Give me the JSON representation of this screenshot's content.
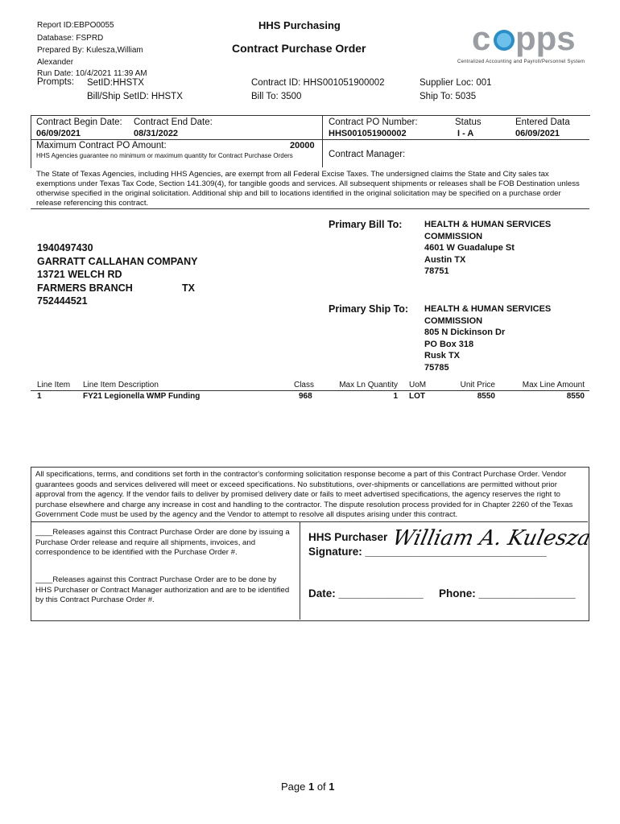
{
  "header": {
    "report_id": "Report ID:EBPO0055",
    "database": "Database: FSPRD",
    "prepared_by": "Prepared By: Kulesza,William",
    "prepared_by_2": "Alexander",
    "run_date": "Run Date: 10/4/2021 11:39 AM",
    "org": "HHS Purchasing",
    "title": "Contract Purchase Order",
    "logo_text": "capps",
    "logo_tagline": "Centralized Accounting and Payroll/Personnel System"
  },
  "prompts": {
    "label": "Prompts:",
    "setid": "SetID:HHSTX",
    "billship_setid": "Bill/Ship SetID: HHSTX",
    "contract_id": "Contract ID: HHS001051900002",
    "bill_to": "Bill To: 3500",
    "supplier_loc": "Supplier Loc: 001",
    "ship_to": "Ship To: 5035"
  },
  "contract": {
    "begin_label": "Contract Begin Date:",
    "begin": "06/09/2021",
    "end_label": "Contract End Date:",
    "end": "08/31/2022",
    "po_label": "Contract PO Number:",
    "po": "HHS001051900002",
    "status_label": "Status",
    "status": "I - A",
    "entered_label": "Entered Data",
    "entered": "06/09/2021",
    "max_label": "Maximum Contract PO Amount:",
    "max": "20000",
    "guarantee": "HHS Agencies guarantee no minimum or maximum quantity for Contract Purchase Orders",
    "manager_label": "Contract Manager:"
  },
  "tax_notice": "The State of Texas Agencies, including HHS Agencies, are exempt from all Federal Excise Taxes. The undersigned claims the State and City sales tax exemptions under Texas Tax Code, Section 141.309(4), for tangible goods and services. All subsequent shipments or releases shall be FOB Destination unless otherwise specified in the original solicitation. Additional ship and bill to locations identified in the original solicitation may be specified on a purchase order release referencing this contract.",
  "vendor": {
    "id": "1940497430",
    "name": "GARRATT CALLAHAN COMPANY",
    "street": "13721 WELCH RD",
    "city": "FARMERS BRANCH",
    "state": "TX",
    "zip": "752444521"
  },
  "bill_to": {
    "label": "Primary Bill To:",
    "lines": [
      "HEALTH & HUMAN SERVICES",
      "COMMISSION",
      "4601 W Guadalupe St",
      "Austin TX",
      "78751"
    ]
  },
  "ship_to": {
    "label": "Primary Ship To:",
    "lines": [
      "HEALTH & HUMAN SERVICES",
      "COMMISSION",
      "805 N Dickinson Dr",
      "PO Box 318",
      "Rusk TX",
      "75785"
    ]
  },
  "lines": {
    "headers": [
      "Line Item",
      "Line Item Description",
      "Class",
      "Max Ln Quantity",
      "UoM",
      "Unit Price",
      "Max Line Amount"
    ],
    "rows": [
      [
        "1",
        "FY21 Legionella WMP Funding",
        "968",
        "1",
        "LOT",
        "8550",
        "8550"
      ]
    ]
  },
  "terms": "All specifications, terms, and conditions set forth in the contractor's conforming solicitation response become a part of this Contract Purchase Order. Vendor guarantees goods and services delivered will meet or exceed specifications.   No substitutions, over-shipments or cancellations are permitted without prior approval from the agency.  If the vendor fails to deliver by promised delivery date or fails to meet advertised specifications, the agency reserves the right to purchase elsewhere and charge any increase in cost and handling to the contractor.  The dispute resolution process provided for in Chapter 2260 of the Texas Government Code must be used by the agency and the Vendor to attempt to resolve all disputes arising under this contract.",
  "release1": "____Releases against this Contract Purchase Order are done by issuing a Purchase Order release and require all shipments, invoices, and correspondence to be identified with the Purchase Order #.",
  "release2": "____Releases against this Contract Purchase Order are to be done by HHS Purchaser or Contract Manager authorization and are to be identified by this Contract Purchase Order #.",
  "signature": {
    "label1": "HHS Purchaser",
    "label2": "Signature: ______________________________",
    "signed_name": "William A. Kulesza",
    "date": "Date: ______________",
    "phone": "Phone: ________________"
  },
  "footer": {
    "page_pre": "Page ",
    "page": "1",
    "of": " of ",
    "total": "1"
  }
}
